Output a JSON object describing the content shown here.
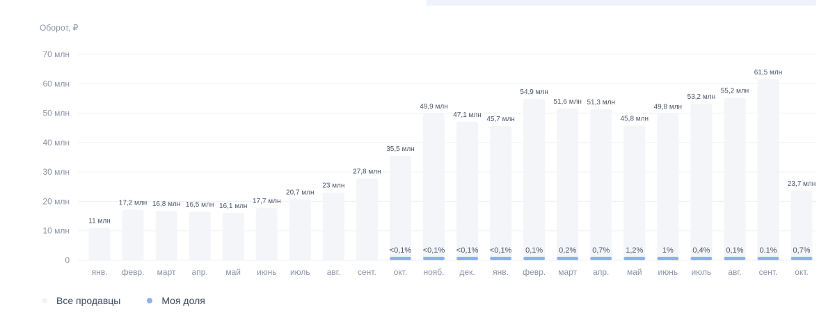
{
  "chart_data": {
    "type": "bar",
    "ylabel": "Оборот, ₽",
    "ylim": [
      0,
      70
    ],
    "yticks": [
      {
        "value": 0,
        "label": "0"
      },
      {
        "value": 10,
        "label": "10 млн"
      },
      {
        "value": 20,
        "label": "20 млн"
      },
      {
        "value": 30,
        "label": "30 млн"
      },
      {
        "value": 40,
        "label": "40 млн"
      },
      {
        "value": 50,
        "label": "50 млн"
      },
      {
        "value": 60,
        "label": "60 млн"
      },
      {
        "value": 70,
        "label": "70 млн"
      }
    ],
    "categories": [
      "янв.",
      "февр.",
      "март",
      "апр.",
      "май",
      "июнь",
      "июль",
      "авг.",
      "сент.",
      "окт.",
      "нояб.",
      "дек.",
      "янв.",
      "февр.",
      "март",
      "апр.",
      "май",
      "июнь",
      "июль",
      "авг.",
      "сент.",
      "окт."
    ],
    "series": [
      {
        "name": "Все продавцы",
        "color": "#f4f5f9",
        "values": [
          11,
          17.2,
          16.8,
          16.5,
          16.1,
          17.7,
          20.7,
          23,
          27.8,
          35.5,
          49.9,
          47.1,
          45.7,
          54.9,
          51.6,
          51.3,
          45.8,
          49.8,
          53.2,
          55.2,
          61.5,
          23.7
        ],
        "labels": [
          "11 млн",
          "17,2 млн",
          "16,8 млн",
          "16,5 млн",
          "16,1 млн",
          "17,7 млн",
          "20,7 млн",
          "23 млн",
          "27,8 млн",
          "35,5 млн",
          "49,9 млн",
          "47,1 млн",
          "45,7 млн",
          "54,9 млн",
          "51,6 млн",
          "51,3 млн",
          "45,8 млн",
          "49,8 млн",
          "53,2 млн",
          "55,2 млн",
          "61,5 млн",
          "23,7 млн"
        ]
      },
      {
        "name": "Моя доля",
        "color": "#8fb0f0",
        "share_labels": [
          null,
          null,
          null,
          null,
          null,
          null,
          null,
          null,
          null,
          "<0,1%",
          "<0,1%",
          "<0,1%",
          "<0,1%",
          "0,1%",
          "0,2%",
          "0,7%",
          "1,2%",
          "1%",
          "0,4%",
          "0,1%",
          "0.1%",
          "0,7%"
        ]
      }
    ]
  },
  "legend": {
    "all_sellers": "Все продавцы",
    "my_share": "Моя доля",
    "all_sellers_color": "#f0f2f6",
    "my_share_color": "#8fb0f0"
  },
  "colors": {
    "grid": "#eef0f4",
    "axis_text": "#8a94a6",
    "value_text": "#4a5568"
  }
}
